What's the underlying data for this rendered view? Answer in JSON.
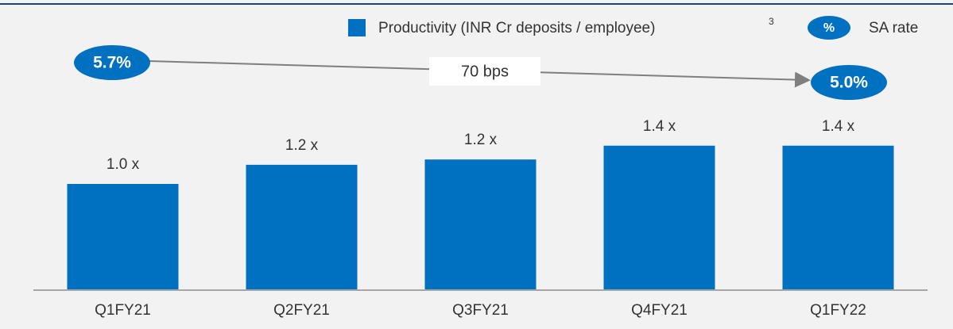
{
  "chart_data": {
    "type": "bar",
    "legend": {
      "bar_label": "Productivity (INR Cr deposits / employee)",
      "bar_footnote": "3",
      "rate_symbol": "%",
      "rate_label": "SA rate"
    },
    "categories": [
      "Q1FY21",
      "Q2FY21",
      "Q3FY21",
      "Q4FY21",
      "Q1FY22"
    ],
    "values": [
      1.0,
      1.18,
      1.23,
      1.36,
      1.36
    ],
    "value_labels": [
      "1.0 x",
      "1.2 x",
      "1.2 x",
      "1.4 x",
      "1.4 x"
    ],
    "color": "#0070c0",
    "ylim": [
      0,
      2
    ],
    "annotations": {
      "start": "5.7%",
      "end": "5.0%",
      "change": "70 bps"
    }
  }
}
